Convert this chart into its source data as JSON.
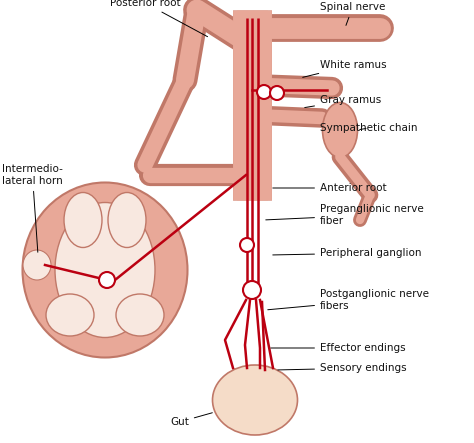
{
  "bg_color": "#ffffff",
  "spine_color": "#e8a898",
  "nerve_color": "#bb0011",
  "outline_color": "#c07868",
  "fill_light": "#f5d0c0",
  "inner_color": "#f8e8e0",
  "gut_color": "#f5dcc8",
  "text_color": "#111111",
  "fig_width": 4.74,
  "fig_height": 4.43,
  "labels": {
    "posterior_root": "Posterior root",
    "intermediolateral": "Intermedio-\nlateral horn",
    "spinal_nerve": "Spinal nerve",
    "white_ramus": "White ramus",
    "gray_ramus": "Gray ramus",
    "sympathetic_chain": "Sympathetic chain",
    "anterior_root": "Anterior root",
    "preganglionic": "Preganglionic nerve\nfiber",
    "peripheral_ganglion": "Peripheral ganglion",
    "postganglionic": "Postganglionic nerve\nfibers",
    "effector_endings": "Effector endings",
    "sensory_endings": "Sensory endings",
    "gut": "Gut"
  }
}
